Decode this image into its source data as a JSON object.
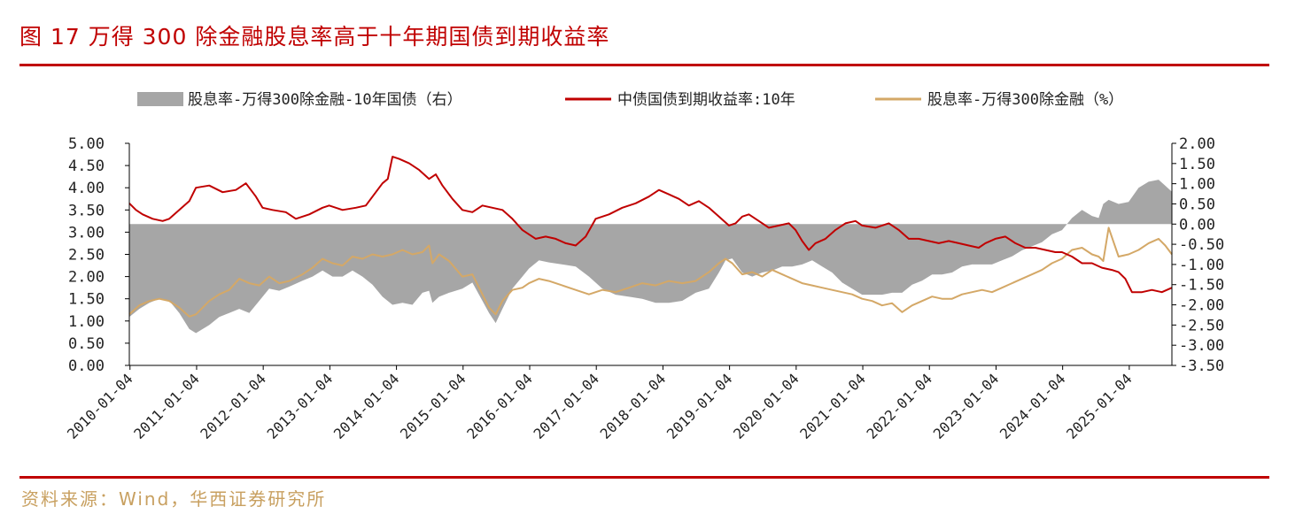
{
  "header": {
    "title": "图 17  万得 300 除金融股息率高于十年期国债到期收益率"
  },
  "footer": {
    "source": "资料来源：Wind，华西证券研究所"
  },
  "colors": {
    "accent": "#c00000",
    "spread": "#a6a6a6",
    "bond": "#c00000",
    "dividend": "#d4a867"
  },
  "chart_data": {
    "type": "area+line",
    "title": "万得300除金融股息率高于十年期国债到期收益率",
    "legend": [
      "股息率-万得300除金融-10年国债（右）",
      "中债国债到期收益率:10年",
      "股息率-万得300除金融（%）"
    ],
    "legend_position": "top-center",
    "left_axis": {
      "range": [
        0,
        5
      ],
      "ticks": [
        "5.00",
        "4.50",
        "4.00",
        "3.50",
        "3.00",
        "2.50",
        "2.00",
        "1.50",
        "1.00",
        "0.50",
        "0.00"
      ]
    },
    "right_axis": {
      "range": [
        -3.5,
        2.0
      ],
      "ticks": [
        "2.00",
        "1.50",
        "1.00",
        "0.50",
        "0.00",
        "-0.50",
        "-1.00",
        "-1.50",
        "-2.00",
        "-2.50",
        "-3.00",
        "-3.50"
      ]
    },
    "x_ticks": [
      "2010-01-04",
      "2011-01-04",
      "2012-01-04",
      "2013-01-04",
      "2014-01-04",
      "2015-01-04",
      "2016-01-04",
      "2017-01-04",
      "2018-01-04",
      "2019-01-04",
      "2020-01-04",
      "2021-01-04",
      "2022-01-04",
      "2023-01-04",
      "2024-01-04",
      "2025-01-04"
    ],
    "x_range": [
      2010.0,
      2025.65
    ],
    "series": [
      {
        "name": "中债国债到期收益率:10年",
        "axis": "left",
        "x": [
          2010.0,
          2010.1,
          2010.2,
          2010.35,
          2010.5,
          2010.6,
          2010.75,
          2010.9,
          2011.0,
          2011.2,
          2011.4,
          2011.6,
          2011.75,
          2011.9,
          2012.0,
          2012.15,
          2012.35,
          2012.5,
          2012.7,
          2012.9,
          2013.0,
          2013.2,
          2013.4,
          2013.55,
          2013.7,
          2013.8,
          2013.88,
          2013.95,
          2014.05,
          2014.2,
          2014.35,
          2014.5,
          2014.6,
          2014.7,
          2014.85,
          2015.0,
          2015.15,
          2015.3,
          2015.45,
          2015.6,
          2015.75,
          2015.9,
          2016.0,
          2016.1,
          2016.25,
          2016.4,
          2016.55,
          2016.7,
          2016.85,
          2017.0,
          2017.2,
          2017.4,
          2017.6,
          2017.8,
          2017.95,
          2018.1,
          2018.25,
          2018.4,
          2018.55,
          2018.7,
          2018.85,
          2019.0,
          2019.1,
          2019.2,
          2019.3,
          2019.45,
          2019.6,
          2019.75,
          2019.9,
          2020.0,
          2020.1,
          2020.2,
          2020.3,
          2020.45,
          2020.6,
          2020.75,
          2020.9,
          2021.0,
          2021.2,
          2021.4,
          2021.55,
          2021.7,
          2021.85,
          2022.0,
          2022.15,
          2022.3,
          2022.45,
          2022.6,
          2022.75,
          2022.85,
          2023.0,
          2023.15,
          2023.3,
          2023.45,
          2023.6,
          2023.75,
          2023.9,
          2024.0,
          2024.15,
          2024.3,
          2024.45,
          2024.6,
          2024.75,
          2024.85,
          2024.95,
          2025.05,
          2025.2,
          2025.35,
          2025.5,
          2025.65
        ],
        "y": [
          3.65,
          3.5,
          3.4,
          3.3,
          3.25,
          3.3,
          3.5,
          3.7,
          4.0,
          4.05,
          3.9,
          3.95,
          4.1,
          3.8,
          3.55,
          3.5,
          3.45,
          3.3,
          3.4,
          3.55,
          3.6,
          3.5,
          3.55,
          3.6,
          3.9,
          4.1,
          4.2,
          4.7,
          4.65,
          4.55,
          4.4,
          4.2,
          4.3,
          4.05,
          3.75,
          3.5,
          3.45,
          3.6,
          3.55,
          3.5,
          3.3,
          3.05,
          2.95,
          2.85,
          2.9,
          2.85,
          2.75,
          2.7,
          2.9,
          3.3,
          3.4,
          3.55,
          3.65,
          3.8,
          3.95,
          3.85,
          3.75,
          3.6,
          3.7,
          3.55,
          3.35,
          3.15,
          3.2,
          3.35,
          3.4,
          3.25,
          3.1,
          3.15,
          3.2,
          3.05,
          2.8,
          2.6,
          2.75,
          2.85,
          3.05,
          3.2,
          3.25,
          3.15,
          3.1,
          3.2,
          3.05,
          2.85,
          2.85,
          2.8,
          2.75,
          2.8,
          2.75,
          2.7,
          2.65,
          2.75,
          2.85,
          2.9,
          2.75,
          2.65,
          2.65,
          2.6,
          2.55,
          2.55,
          2.45,
          2.3,
          2.3,
          2.2,
          2.15,
          2.1,
          1.95,
          1.65,
          1.65,
          1.7,
          1.65,
          1.75
        ]
      },
      {
        "name": "股息率-万得300除金融（%）",
        "axis": "left",
        "x": [
          2010.0,
          2010.15,
          2010.3,
          2010.45,
          2010.6,
          2010.75,
          2010.9,
          2011.0,
          2011.2,
          2011.35,
          2011.5,
          2011.65,
          2011.8,
          2011.95,
          2012.1,
          2012.25,
          2012.4,
          2012.6,
          2012.75,
          2012.9,
          2013.05,
          2013.2,
          2013.35,
          2013.5,
          2013.65,
          2013.8,
          2013.95,
          2014.1,
          2014.25,
          2014.4,
          2014.5,
          2014.55,
          2014.65,
          2014.8,
          2015.0,
          2015.15,
          2015.3,
          2015.4,
          2015.5,
          2015.6,
          2015.75,
          2015.9,
          2016.0,
          2016.15,
          2016.3,
          2016.5,
          2016.7,
          2016.9,
          2017.1,
          2017.3,
          2017.5,
          2017.7,
          2017.9,
          2018.1,
          2018.3,
          2018.5,
          2018.7,
          2018.85,
          2018.95,
          2019.05,
          2019.2,
          2019.35,
          2019.5,
          2019.65,
          2019.8,
          2019.95,
          2020.1,
          2020.25,
          2020.4,
          2020.55,
          2020.7,
          2020.85,
          2021.0,
          2021.15,
          2021.3,
          2021.45,
          2021.6,
          2021.75,
          2021.9,
          2022.05,
          2022.2,
          2022.35,
          2022.5,
          2022.65,
          2022.8,
          2022.95,
          2023.1,
          2023.25,
          2023.4,
          2023.55,
          2023.7,
          2023.85,
          2024.0,
          2024.15,
          2024.3,
          2024.45,
          2024.55,
          2024.62,
          2024.7,
          2024.85,
          2025.0,
          2025.15,
          2025.3,
          2025.45,
          2025.55,
          2025.65
        ],
        "y": [
          1.15,
          1.35,
          1.45,
          1.5,
          1.45,
          1.3,
          1.1,
          1.15,
          1.45,
          1.6,
          1.7,
          1.95,
          1.85,
          1.8,
          2.0,
          1.85,
          1.9,
          2.05,
          2.2,
          2.4,
          2.3,
          2.25,
          2.45,
          2.4,
          2.5,
          2.45,
          2.5,
          2.6,
          2.5,
          2.55,
          2.7,
          2.3,
          2.5,
          2.35,
          2.0,
          2.05,
          1.6,
          1.3,
          1.15,
          1.45,
          1.7,
          1.75,
          1.85,
          1.95,
          1.9,
          1.8,
          1.7,
          1.6,
          1.7,
          1.65,
          1.75,
          1.85,
          1.8,
          1.9,
          1.85,
          1.9,
          2.1,
          2.3,
          2.4,
          2.3,
          2.05,
          2.1,
          2.0,
          2.15,
          2.05,
          1.95,
          1.85,
          1.8,
          1.75,
          1.7,
          1.65,
          1.6,
          1.5,
          1.45,
          1.35,
          1.4,
          1.2,
          1.35,
          1.45,
          1.55,
          1.5,
          1.5,
          1.6,
          1.65,
          1.7,
          1.65,
          1.75,
          1.85,
          1.95,
          2.05,
          2.15,
          2.3,
          2.4,
          2.6,
          2.65,
          2.5,
          2.45,
          2.35,
          3.1,
          2.45,
          2.5,
          2.6,
          2.75,
          2.85,
          2.7,
          2.5
        ]
      },
      {
        "name": "股息率-万得300除金融-10年国债（右）",
        "axis": "right",
        "x": [
          2010.0,
          2010.15,
          2010.3,
          2010.45,
          2010.6,
          2010.75,
          2010.9,
          2011.0,
          2011.2,
          2011.35,
          2011.5,
          2011.65,
          2011.8,
          2011.95,
          2012.1,
          2012.25,
          2012.4,
          2012.6,
          2012.75,
          2012.9,
          2013.05,
          2013.2,
          2013.35,
          2013.5,
          2013.65,
          2013.8,
          2013.95,
          2014.1,
          2014.25,
          2014.4,
          2014.5,
          2014.55,
          2014.65,
          2014.8,
          2015.0,
          2015.15,
          2015.3,
          2015.4,
          2015.5,
          2015.6,
          2015.75,
          2015.9,
          2016.0,
          2016.15,
          2016.3,
          2016.5,
          2016.7,
          2016.9,
          2017.1,
          2017.3,
          2017.5,
          2017.7,
          2017.9,
          2018.1,
          2018.3,
          2018.5,
          2018.7,
          2018.85,
          2018.95,
          2019.05,
          2019.2,
          2019.35,
          2019.5,
          2019.65,
          2019.8,
          2019.95,
          2020.1,
          2020.25,
          2020.4,
          2020.55,
          2020.7,
          2020.85,
          2021.0,
          2021.15,
          2021.3,
          2021.45,
          2021.6,
          2021.75,
          2021.9,
          2022.05,
          2022.2,
          2022.35,
          2022.5,
          2022.65,
          2022.8,
          2022.95,
          2023.1,
          2023.25,
          2023.4,
          2023.55,
          2023.7,
          2023.85,
          2024.0,
          2024.15,
          2024.3,
          2024.45,
          2024.55,
          2024.62,
          2024.7,
          2024.85,
          2025.0,
          2025.15,
          2025.3,
          2025.45,
          2025.55,
          2025.65
        ],
        "y": [
          -2.3,
          -2.1,
          -1.95,
          -1.85,
          -1.9,
          -2.2,
          -2.6,
          -2.7,
          -2.5,
          -2.3,
          -2.2,
          -2.1,
          -2.2,
          -1.9,
          -1.6,
          -1.65,
          -1.55,
          -1.4,
          -1.3,
          -1.15,
          -1.3,
          -1.3,
          -1.15,
          -1.3,
          -1.5,
          -1.8,
          -2.0,
          -1.95,
          -2.0,
          -1.7,
          -1.65,
          -1.95,
          -1.8,
          -1.7,
          -1.6,
          -1.45,
          -1.9,
          -2.2,
          -2.45,
          -2.1,
          -1.6,
          -1.3,
          -1.1,
          -0.9,
          -0.95,
          -1.0,
          -1.05,
          -1.3,
          -1.6,
          -1.75,
          -1.8,
          -1.85,
          -1.95,
          -1.95,
          -1.9,
          -1.7,
          -1.6,
          -1.2,
          -0.9,
          -0.85,
          -1.2,
          -1.3,
          -1.2,
          -1.15,
          -1.05,
          -1.05,
          -1.0,
          -0.9,
          -1.05,
          -1.2,
          -1.45,
          -1.6,
          -1.75,
          -1.75,
          -1.75,
          -1.7,
          -1.7,
          -1.5,
          -1.4,
          -1.25,
          -1.25,
          -1.2,
          -1.05,
          -1.0,
          -1.0,
          -1.0,
          -0.9,
          -0.8,
          -0.65,
          -0.55,
          -0.45,
          -0.25,
          -0.15,
          0.15,
          0.35,
          0.2,
          0.15,
          0.5,
          0.6,
          0.5,
          0.55,
          0.9,
          1.05,
          1.1,
          0.95,
          0.8
        ]
      }
    ]
  }
}
